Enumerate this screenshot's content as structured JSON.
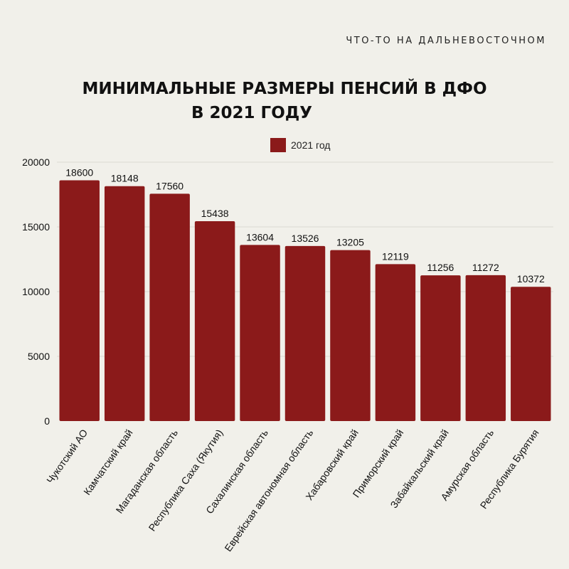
{
  "brand": "ЧТО-ТО НА ДАЛЬНЕВОСТОЧНОМ",
  "title_line1": "МИНИМАЛЬНЫЕ РАЗМЕРЫ ПЕНСИЙ В ДФО",
  "title_line2": "В 2021 ГОДУ",
  "legend_label": "2021 год",
  "colors": {
    "bar": "#8b1a1a",
    "background": "#f1f0ea"
  },
  "chart_data": {
    "type": "bar",
    "title": "МИНИМАЛЬНЫЕ РАЗМЕРЫ ПЕНСИЙ В ДФО В 2021 ГОДУ",
    "xlabel": "",
    "ylabel": "",
    "ylim": [
      0,
      20000
    ],
    "yticks": [
      0,
      5000,
      10000,
      15000,
      20000
    ],
    "grid": true,
    "legend_position": "top-center",
    "categories": [
      "Чукотский АО",
      "Камчатский край",
      "Магаданская область",
      "Республика Саха (Якутия)",
      "Сахалинская область",
      "Еврейская автономная область",
      "Хабаровский край",
      "Приморский край",
      "Забайкальский край",
      "Амурская область",
      "Республика Бурятия"
    ],
    "series": [
      {
        "name": "2021 год",
        "values": [
          18600,
          18148,
          17560,
          15438,
          13604,
          13526,
          13205,
          12119,
          11256,
          11272,
          10372
        ]
      }
    ]
  }
}
